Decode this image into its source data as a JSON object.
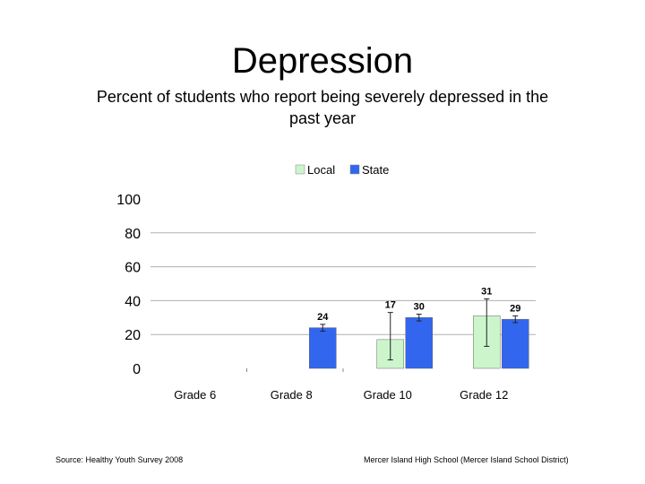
{
  "header": {
    "title": "Depression",
    "subtitle": "Percent of students who report being severely depressed in the past year"
  },
  "footer": {
    "source": "Source: Healthy Youth Survey 2008",
    "school": "Mercer Island High School (Mercer Island School District)"
  },
  "colors": {
    "local": "#ccf5cc",
    "state": "#3366ee",
    "grid": "#b0b0b0"
  },
  "chart_data": {
    "type": "bar",
    "title": "",
    "xlabel": "",
    "ylabel": "",
    "categories": [
      "Grade 6",
      "Grade 8",
      "Grade 10",
      "Grade 12"
    ],
    "series": [
      {
        "name": "Local",
        "values": [
          null,
          null,
          17,
          31
        ],
        "labels": [
          "",
          "",
          "17",
          "31"
        ],
        "error_bars": [
          null,
          null,
          [
            5,
            33
          ],
          [
            13,
            41
          ]
        ]
      },
      {
        "name": "State",
        "values": [
          null,
          24,
          30,
          29
        ],
        "labels": [
          "",
          "24",
          "30",
          "29"
        ],
        "error_bars": [
          null,
          [
            22,
            26
          ],
          [
            28,
            32
          ],
          [
            27,
            31
          ]
        ]
      }
    ],
    "ylim": [
      0,
      100
    ],
    "yticks": [
      0,
      20,
      40,
      60,
      80,
      100
    ],
    "grid": true,
    "legend_position": "top"
  }
}
